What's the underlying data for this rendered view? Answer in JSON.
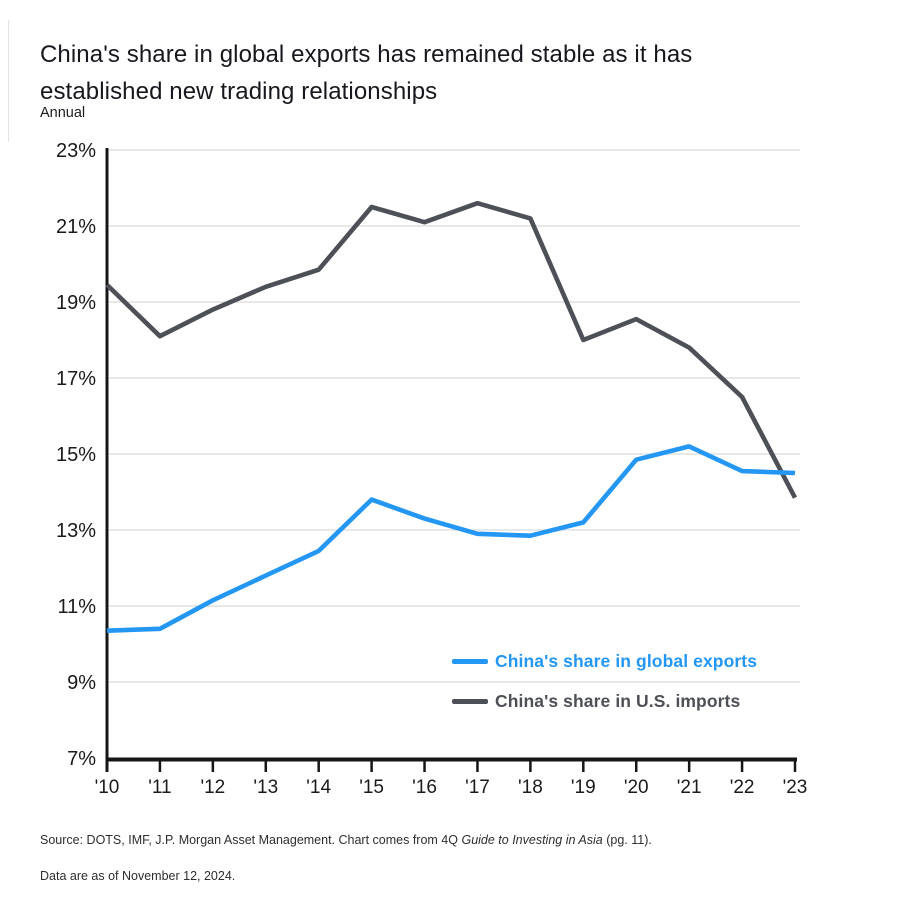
{
  "header": {
    "title_lines": [
      "China's share in global exports has remained stable as it has",
      "established new trading relationships"
    ],
    "subtitle": "Annual"
  },
  "chart_data": {
    "type": "line",
    "title": "China's share in global exports has remained stable as it has established new trading relationships",
    "subtitle": "Annual",
    "x": [
      "'10",
      "'11",
      "'12",
      "'13",
      "'14",
      "'15",
      "'16",
      "'17",
      "'18",
      "'19",
      "'20",
      "'21",
      "'22",
      "'23"
    ],
    "years": [
      2010,
      2011,
      2012,
      2013,
      2014,
      2015,
      2016,
      2017,
      2018,
      2019,
      2020,
      2021,
      2022,
      2023
    ],
    "ylim": [
      7,
      23
    ],
    "ytick_step": 2,
    "ytick_suffix": "%",
    "grid": true,
    "legend_position": "inside-bottom-right",
    "series": [
      {
        "name": "China's share in global exports",
        "color": "#2397f3",
        "values": [
          10.35,
          10.4,
          11.15,
          11.8,
          12.45,
          13.8,
          13.3,
          12.9,
          12.85,
          13.2,
          14.85,
          15.2,
          14.55,
          14.5
        ]
      },
      {
        "name": "China's share in U.S. imports",
        "color": "#4d5056",
        "values": [
          19.45,
          18.1,
          18.8,
          19.4,
          19.85,
          21.5,
          21.1,
          21.6,
          21.2,
          18.0,
          18.55,
          17.8,
          16.5,
          13.85
        ]
      }
    ],
    "axis_color": "#161616",
    "gridline_color": "#d9d9d9",
    "tick_label_color": "#1a1a1a"
  },
  "footer": {
    "source_prefix": "Source: DOTS, IMF, J.P. Morgan Asset Management. Chart comes from 4Q ",
    "source_italic": "Guide to Investing in Asia",
    "source_suffix": " (pg. 11).",
    "asof": "Data are as of November 12, 2024."
  }
}
